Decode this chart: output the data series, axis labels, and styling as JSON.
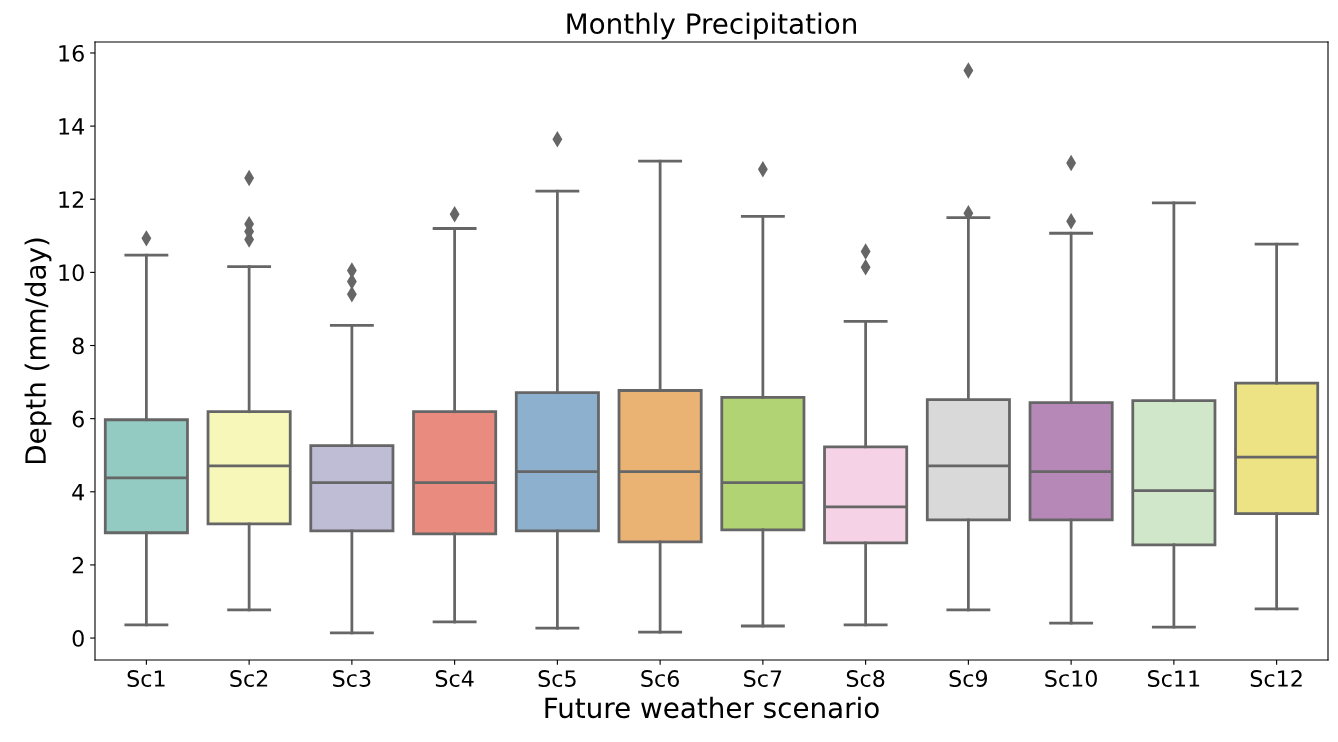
{
  "chart_data": {
    "type": "box",
    "title": "Monthly Precipitation",
    "xlabel": "Future weather scenario",
    "ylabel": "Depth (mm/day)",
    "categories": [
      "Sc1",
      "Sc2",
      "Sc3",
      "Sc4",
      "Sc5",
      "Sc6",
      "Sc7",
      "Sc8",
      "Sc9",
      "Sc10",
      "Sc11",
      "Sc12"
    ],
    "colors": [
      "#93cbc2",
      "#f7f7b9",
      "#bfbcd6",
      "#ea8b80",
      "#8cb0cd",
      "#eab374",
      "#b1d374",
      "#f5d2e5",
      "#d9d9d9",
      "#b688b7",
      "#d0e8c9",
      "#ede284"
    ],
    "boxes": [
      {
        "low": 0.36,
        "q1": 2.88,
        "median": 4.38,
        "q3": 5.97,
        "high": 10.47,
        "outliers": [
          10.93
        ]
      },
      {
        "low": 0.77,
        "q1": 3.12,
        "median": 4.71,
        "q3": 6.19,
        "high": 10.16,
        "outliers": [
          10.9,
          11.12,
          11.32,
          12.58
        ]
      },
      {
        "low": 0.14,
        "q1": 2.93,
        "median": 4.25,
        "q3": 5.26,
        "high": 8.55,
        "outliers": [
          9.4,
          9.75,
          10.05
        ]
      },
      {
        "low": 0.44,
        "q1": 2.85,
        "median": 4.25,
        "q3": 6.19,
        "high": 11.2,
        "outliers": [
          11.59
        ]
      },
      {
        "low": 0.27,
        "q1": 2.93,
        "median": 4.55,
        "q3": 6.71,
        "high": 12.22,
        "outliers": [
          13.64
        ]
      },
      {
        "low": 0.16,
        "q1": 2.63,
        "median": 4.55,
        "q3": 6.77,
        "high": 13.04
      },
      {
        "low": 0.33,
        "q1": 2.96,
        "median": 4.25,
        "q3": 6.58,
        "high": 11.53,
        "outliers": [
          12.82
        ]
      },
      {
        "low": 0.36,
        "q1": 2.6,
        "median": 3.59,
        "q3": 5.23,
        "high": 8.66,
        "outliers": [
          10.14,
          10.57
        ]
      },
      {
        "low": 0.77,
        "q1": 3.23,
        "median": 4.71,
        "q3": 6.52,
        "high": 11.5,
        "outliers": [
          11.62,
          15.52
        ]
      },
      {
        "low": 0.41,
        "q1": 3.23,
        "median": 4.55,
        "q3": 6.44,
        "high": 11.07,
        "outliers": [
          11.4,
          12.99
        ]
      },
      {
        "low": 0.3,
        "q1": 2.55,
        "median": 4.03,
        "q3": 6.49,
        "high": 11.9
      },
      {
        "low": 0.8,
        "q1": 3.4,
        "median": 4.95,
        "q3": 6.97,
        "high": 10.77
      }
    ],
    "ylim": [
      -0.6,
      16.3
    ],
    "yticks": [
      0,
      2,
      4,
      6,
      8,
      10,
      12,
      14,
      16
    ],
    "grid": false,
    "marker": "diamond"
  }
}
